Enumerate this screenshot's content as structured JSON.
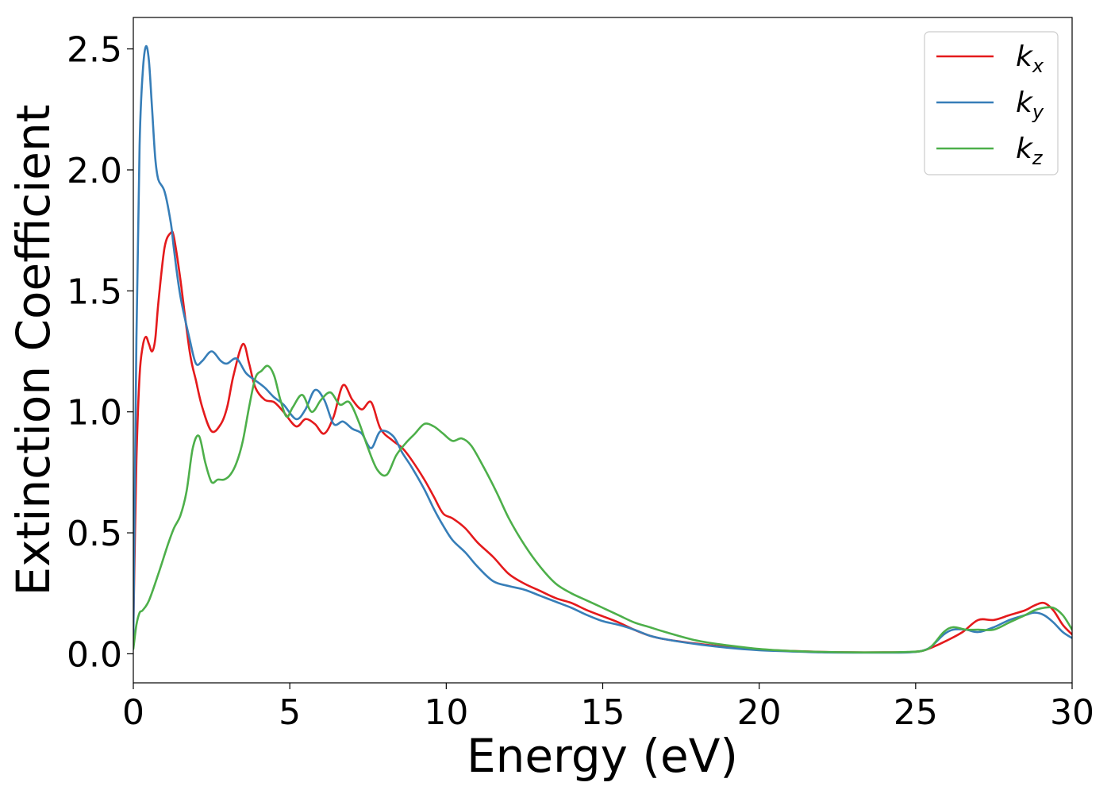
{
  "chart_data": {
    "type": "line",
    "title": "",
    "xlabel": "Energy (eV)",
    "ylabel": "Extinction Coefficient",
    "xlim": [
      0,
      30
    ],
    "ylim": [
      -0.12,
      2.63
    ],
    "xticks": [
      0,
      5,
      10,
      15,
      20,
      25,
      30
    ],
    "yticks": [
      0.0,
      0.5,
      1.0,
      1.5,
      2.0,
      2.5
    ],
    "xtick_labels": [
      "0",
      "5",
      "10",
      "15",
      "20",
      "25",
      "30"
    ],
    "ytick_labels": [
      "0.0",
      "0.5",
      "1.0",
      "1.5",
      "2.0",
      "2.5"
    ],
    "grid": false,
    "legend_position": "top-right",
    "series": [
      {
        "name": "k_x",
        "label_base": "k",
        "label_sub": "x",
        "color": "#e41a1c",
        "x": [
          0,
          0.1,
          0.2,
          0.3,
          0.4,
          0.5,
          0.6,
          0.7,
          0.8,
          1.0,
          1.2,
          1.3,
          1.5,
          1.8,
          2.0,
          2.2,
          2.5,
          2.8,
          3.0,
          3.2,
          3.5,
          3.7,
          3.9,
          4.2,
          4.5,
          4.8,
          5.2,
          5.5,
          5.8,
          6.1,
          6.4,
          6.7,
          7.0,
          7.3,
          7.6,
          7.9,
          8.3,
          8.6,
          8.9,
          9.3,
          9.6,
          9.9,
          10.2,
          10.6,
          11.0,
          11.5,
          12.0,
          12.5,
          13.0,
          13.5,
          14.0,
          14.5,
          15.0,
          15.5,
          16.0,
          16.5,
          17.0,
          18.0,
          19.0,
          20.0,
          21.0,
          22.0,
          23.0,
          24.0,
          24.8,
          25.2,
          25.5,
          26.0,
          26.5,
          27.0,
          27.5,
          28.0,
          28.5,
          28.8,
          29.1,
          29.4,
          29.7,
          30.0
        ],
        "y": [
          0.1,
          0.8,
          1.15,
          1.27,
          1.31,
          1.28,
          1.25,
          1.3,
          1.45,
          1.68,
          1.74,
          1.72,
          1.55,
          1.25,
          1.13,
          1.02,
          0.92,
          0.95,
          1.02,
          1.15,
          1.28,
          1.2,
          1.1,
          1.05,
          1.04,
          1.0,
          0.94,
          0.97,
          0.95,
          0.91,
          0.98,
          1.11,
          1.05,
          1.01,
          1.04,
          0.93,
          0.88,
          0.85,
          0.8,
          0.72,
          0.65,
          0.58,
          0.56,
          0.52,
          0.46,
          0.4,
          0.33,
          0.29,
          0.26,
          0.23,
          0.21,
          0.18,
          0.155,
          0.13,
          0.1,
          0.075,
          0.06,
          0.042,
          0.028,
          0.018,
          0.012,
          0.008,
          0.006,
          0.006,
          0.007,
          0.012,
          0.025,
          0.055,
          0.09,
          0.14,
          0.14,
          0.16,
          0.18,
          0.2,
          0.21,
          0.18,
          0.12,
          0.08
        ]
      },
      {
        "name": "k_y",
        "label_base": "k",
        "label_sub": "y",
        "color": "#377eb8",
        "x": [
          0,
          0.1,
          0.2,
          0.3,
          0.4,
          0.5,
          0.6,
          0.7,
          0.8,
          1.0,
          1.2,
          1.3,
          1.5,
          1.8,
          2.0,
          2.2,
          2.5,
          2.8,
          3.0,
          3.3,
          3.6,
          3.9,
          4.2,
          4.5,
          4.8,
          5.2,
          5.5,
          5.8,
          6.1,
          6.4,
          6.7,
          7.0,
          7.3,
          7.6,
          7.9,
          8.3,
          8.6,
          8.9,
          9.3,
          9.6,
          9.9,
          10.2,
          10.6,
          11.0,
          11.5,
          12.0,
          12.5,
          13.0,
          13.5,
          14.0,
          14.5,
          15.0,
          15.5,
          16.0,
          16.5,
          17.0,
          18.0,
          19.0,
          20.0,
          21.0,
          22.0,
          23.0,
          24.0,
          24.8,
          25.2,
          25.5,
          25.9,
          26.2,
          26.6,
          27.0,
          27.5,
          28.0,
          28.5,
          28.8,
          29.1,
          29.4,
          29.7,
          30.0
        ],
        "y": [
          0.05,
          1.3,
          2.1,
          2.4,
          2.51,
          2.45,
          2.25,
          2.05,
          1.96,
          1.91,
          1.78,
          1.67,
          1.48,
          1.3,
          1.2,
          1.21,
          1.25,
          1.21,
          1.2,
          1.22,
          1.16,
          1.13,
          1.1,
          1.06,
          1.03,
          0.97,
          1.01,
          1.09,
          1.05,
          0.95,
          0.96,
          0.93,
          0.91,
          0.85,
          0.92,
          0.9,
          0.83,
          0.77,
          0.68,
          0.6,
          0.53,
          0.47,
          0.42,
          0.36,
          0.3,
          0.28,
          0.265,
          0.24,
          0.215,
          0.19,
          0.16,
          0.135,
          0.12,
          0.1,
          0.075,
          0.06,
          0.04,
          0.025,
          0.015,
          0.01,
          0.006,
          0.005,
          0.005,
          0.006,
          0.012,
          0.03,
          0.08,
          0.1,
          0.1,
          0.09,
          0.11,
          0.14,
          0.16,
          0.17,
          0.16,
          0.13,
          0.09,
          0.065
        ]
      },
      {
        "name": "k_z",
        "label_base": "k",
        "label_sub": "z",
        "color": "#4daf4a",
        "x": [
          0,
          0.1,
          0.2,
          0.3,
          0.5,
          0.8,
          1.1,
          1.3,
          1.5,
          1.7,
          1.9,
          2.1,
          2.3,
          2.5,
          2.7,
          2.9,
          3.1,
          3.3,
          3.5,
          3.7,
          3.9,
          4.1,
          4.3,
          4.5,
          4.7,
          4.9,
          5.1,
          5.4,
          5.7,
          6.0,
          6.3,
          6.6,
          6.9,
          7.2,
          7.5,
          7.8,
          8.1,
          8.4,
          8.7,
          9.0,
          9.3,
          9.6,
          9.9,
          10.2,
          10.5,
          10.8,
          11.2,
          11.6,
          12.0,
          12.5,
          13.0,
          13.5,
          14.0,
          14.5,
          15.0,
          15.5,
          16.0,
          16.5,
          17.0,
          18.0,
          19.0,
          20.0,
          21.0,
          22.0,
          23.0,
          24.0,
          24.8,
          25.2,
          25.5,
          25.9,
          26.2,
          26.6,
          27.0,
          27.5,
          28.0,
          28.5,
          28.8,
          29.1,
          29.4,
          29.7,
          30.0
        ],
        "y": [
          0.02,
          0.12,
          0.17,
          0.18,
          0.22,
          0.33,
          0.45,
          0.52,
          0.57,
          0.67,
          0.85,
          0.9,
          0.79,
          0.71,
          0.72,
          0.72,
          0.74,
          0.79,
          0.88,
          1.02,
          1.14,
          1.17,
          1.19,
          1.15,
          1.05,
          0.98,
          1.02,
          1.07,
          1.0,
          1.05,
          1.08,
          1.03,
          1.04,
          0.96,
          0.85,
          0.76,
          0.74,
          0.82,
          0.87,
          0.91,
          0.95,
          0.94,
          0.91,
          0.88,
          0.89,
          0.86,
          0.77,
          0.67,
          0.56,
          0.45,
          0.36,
          0.29,
          0.25,
          0.22,
          0.19,
          0.16,
          0.13,
          0.11,
          0.09,
          0.055,
          0.035,
          0.02,
          0.012,
          0.008,
          0.006,
          0.006,
          0.008,
          0.012,
          0.03,
          0.09,
          0.11,
          0.1,
          0.1,
          0.1,
          0.13,
          0.16,
          0.18,
          0.19,
          0.19,
          0.16,
          0.1
        ]
      }
    ]
  }
}
